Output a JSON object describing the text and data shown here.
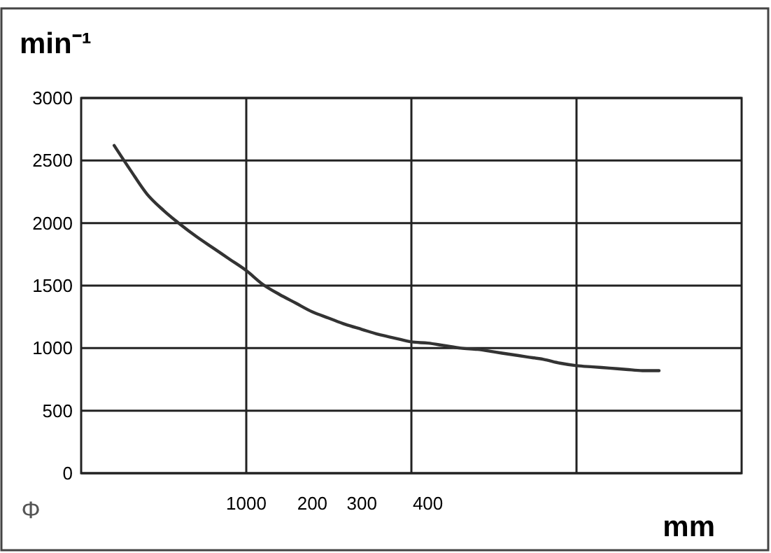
{
  "chart_data": {
    "type": "line",
    "ylabel": "min⁻¹",
    "xlabel": "mm",
    "annotations": [
      "Φ"
    ],
    "categories": [
      null,
      null,
      null,
      null,
      null,
      null,
      null,
      null,
      null,
      null,
      "1000",
      null,
      null,
      null,
      "200",
      null,
      null,
      "300",
      null,
      null,
      null,
      "400",
      null,
      null,
      null,
      null,
      null,
      null,
      null,
      null,
      null,
      null,
      null,
      null,
      null,
      null,
      null,
      null,
      null,
      null,
      null
    ],
    "series": [
      {
        "color": "#333333",
        "values": [
          null,
          null,
          2620,
          2420,
          2230,
          2100,
          1990,
          1890,
          1800,
          1710,
          1620,
          1510,
          1430,
          1360,
          1290,
          1240,
          1190,
          1150,
          1110,
          1080,
          1050,
          1040,
          1020,
          1000,
          990,
          970,
          950,
          930,
          910,
          880,
          860,
          850,
          840,
          830,
          820,
          820,
          null,
          null,
          null,
          null,
          null
        ]
      }
    ],
    "ylim": [
      0,
      3000
    ],
    "yticks": [
      0,
      500,
      1000,
      1500,
      2000,
      2500,
      3000
    ],
    "grid": true,
    "marker": "none",
    "line_style": "solid"
  }
}
